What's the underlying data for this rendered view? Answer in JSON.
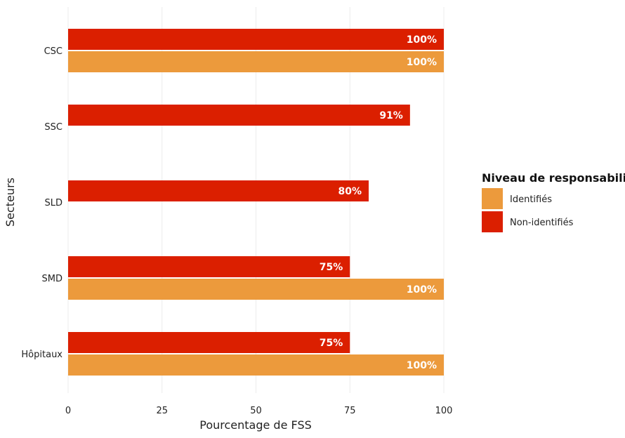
{
  "chart_data": {
    "type": "bar",
    "orientation": "horizontal",
    "xlabel": "Pourcentage de FSS",
    "ylabel": "Secteurs",
    "xlim": [
      0,
      100
    ],
    "xticks": [
      "0",
      "25",
      "50",
      "75",
      "100"
    ],
    "categories": [
      "CSC",
      "SSC",
      "SLD",
      "SMD",
      "Hôpitaux"
    ],
    "series": [
      {
        "name": "Non-identifiés",
        "color": "#db1f00",
        "values": [
          100,
          91,
          80,
          75,
          75
        ],
        "labels": [
          "100%",
          "91%",
          "80%",
          "75%",
          "75%"
        ]
      },
      {
        "name": "Identifiés",
        "color": "#ec9a3c",
        "values": [
          100,
          null,
          null,
          100,
          100
        ],
        "labels": [
          "100%",
          "",
          "",
          "100%",
          "100%"
        ]
      }
    ],
    "legend": {
      "title": "Niveau de responsabilité",
      "position": "right",
      "items": [
        {
          "label": "Identifiés",
          "color": "#ec9a3c"
        },
        {
          "label": "Non-identifiés",
          "color": "#db1f00"
        }
      ]
    },
    "grid": true
  }
}
